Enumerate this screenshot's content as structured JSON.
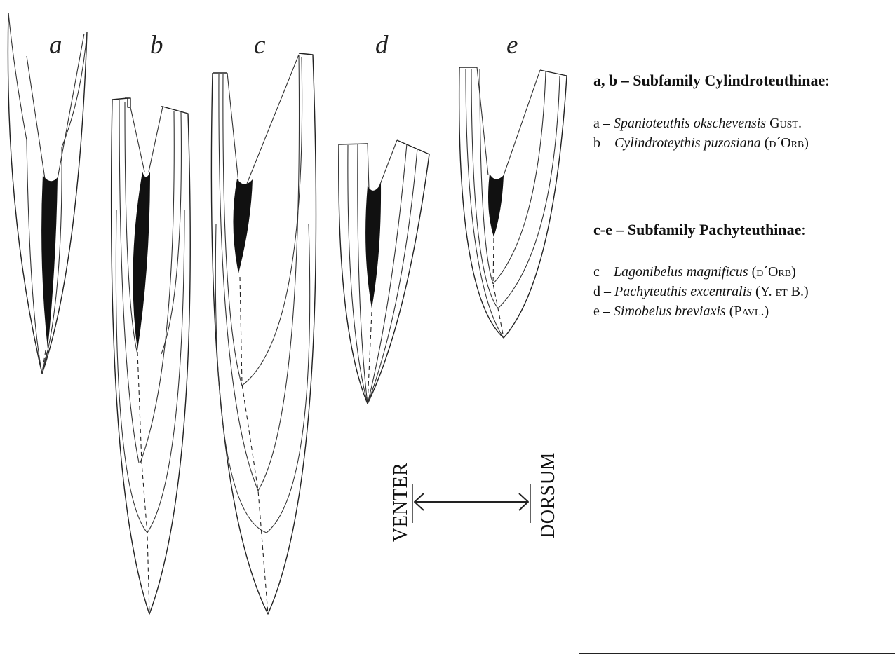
{
  "panel_labels": [
    "a",
    "b",
    "c",
    "d",
    "e"
  ],
  "orientation": {
    "left_label": "VENTER",
    "right_label": "DORSUM"
  },
  "legend": {
    "group1": {
      "letters": "a, b",
      "dash": "–",
      "title": "Subfamily Cylindroteuthinae",
      "colon": ":",
      "items": [
        {
          "letter": "a",
          "species": "Spanioteuthis okschevensis",
          "author": "Gust."
        },
        {
          "letter": "b",
          "species": "Cylindroteythis puzosiana",
          "author": "(d´Orb)"
        }
      ]
    },
    "group2": {
      "letters": "c-e",
      "dash": "–",
      "title": "Subfamily Pachyteuthinae",
      "colon": ":",
      "items": [
        {
          "letter": "c",
          "species": "Lagonibelus magnificus",
          "author": "(d´Orb)"
        },
        {
          "letter": "d",
          "species": "Pachyteuthis excentralis",
          "author": "(Y. et B.)"
        },
        {
          "letter": "e",
          "species": "Simobelus breviaxis",
          "author": "(Pavl.)"
        }
      ]
    }
  },
  "colors": {
    "ink": "#222222",
    "guard_fill": "#111111"
  }
}
